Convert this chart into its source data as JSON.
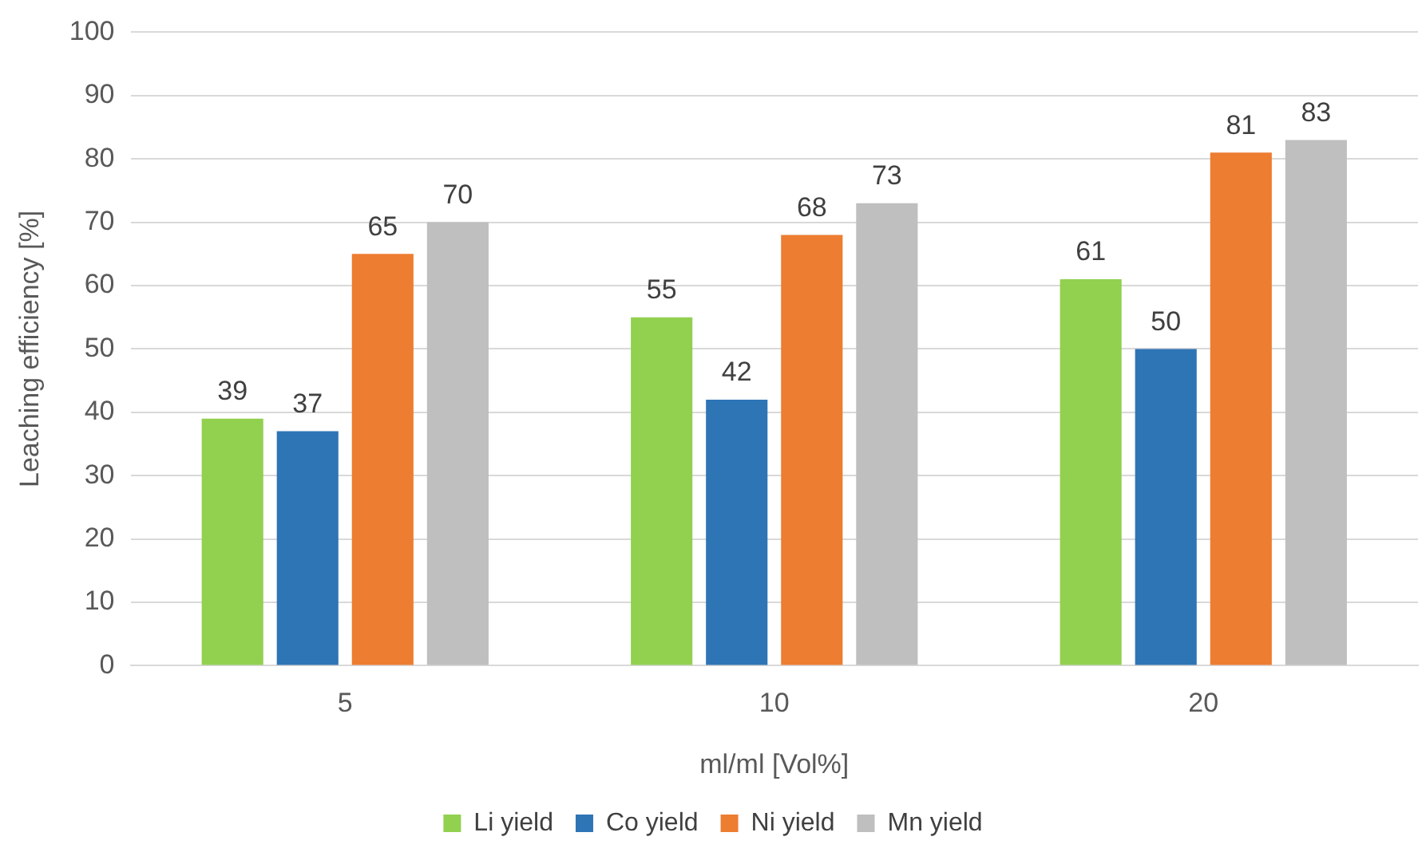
{
  "chart_data": {
    "type": "bar",
    "xlabel": "ml/ml [Vol%]",
    "ylabel": "Leaching efficiency [%]",
    "categories": [
      "5",
      "10",
      "20"
    ],
    "series": [
      {
        "name": "Li yield",
        "color": "#92d050",
        "values": [
          39,
          55,
          61
        ]
      },
      {
        "name": "Co yield",
        "color": "#2e75b6",
        "values": [
          37,
          42,
          50
        ]
      },
      {
        "name": "Ni yield",
        "color": "#ed7d31",
        "values": [
          65,
          68,
          81
        ]
      },
      {
        "name": "Mn yield",
        "color": "#bfbfbf",
        "values": [
          70,
          73,
          83
        ]
      }
    ],
    "ylim": [
      0,
      100
    ],
    "yticks": [
      0,
      10,
      20,
      30,
      40,
      50,
      60,
      70,
      80,
      90,
      100
    ],
    "grid": "y",
    "legend": "bottom",
    "data_labels": true
  }
}
